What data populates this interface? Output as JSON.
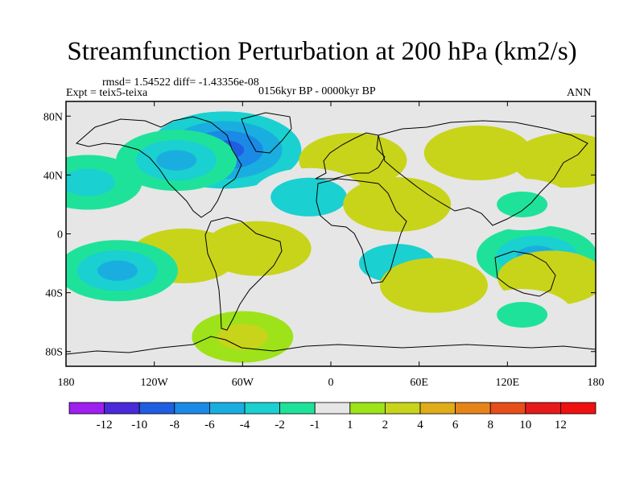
{
  "title": "Streamfunction Perturbation at 200 hPa (km2/s)",
  "stats": "rmsd= 1.54522 diff= -1.43356e-08",
  "experiment": "Expt = teix5-teixa",
  "period": "0156kyr BP - 0000kyr BP",
  "season": "ANN",
  "map": {
    "projection": "cylindrical equidistant",
    "lon_range": [
      -180,
      180
    ],
    "lat_range": [
      -90,
      90
    ],
    "lat_ticks": [
      {
        "label": "80N",
        "lat": 80
      },
      {
        "label": "40N",
        "lat": 40
      },
      {
        "label": "0",
        "lat": 0
      },
      {
        "label": "40S",
        "lat": -40
      },
      {
        "label": "80S",
        "lat": -80
      }
    ],
    "lon_ticks": [
      {
        "label": "180",
        "lon": -180
      },
      {
        "label": "120W",
        "lon": -120
      },
      {
        "label": "60W",
        "lon": -60
      },
      {
        "label": "0",
        "lon": 0
      },
      {
        "label": "60E",
        "lon": 60
      },
      {
        "label": "120E",
        "lon": 120
      },
      {
        "label": "180",
        "lon": 180
      }
    ],
    "background_color": "#e6e6e6",
    "features": [
      {
        "name": "north-atlantic-negative-center",
        "lon": -72,
        "lat": 57,
        "value": -10
      },
      {
        "name": "north-america-negative",
        "lon": -105,
        "lat": 50,
        "value": -5
      },
      {
        "name": "europe-positive",
        "lon": 15,
        "lat": 50,
        "value": 3
      },
      {
        "name": "asia-positive",
        "lon": 100,
        "lat": 55,
        "value": 3
      },
      {
        "name": "north-pacific-positive",
        "lon": 160,
        "lat": 50,
        "value": 3
      },
      {
        "name": "north-pacific-west-negative",
        "lon": -165,
        "lat": 35,
        "value": -3
      },
      {
        "name": "subtropical-north-atlantic-negative",
        "lon": -15,
        "lat": 25,
        "value": -4
      },
      {
        "name": "arabia-positive",
        "lon": 45,
        "lat": 20,
        "value": 3
      },
      {
        "name": "south-pacific-positive",
        "lon": -100,
        "lat": -15,
        "value": 3
      },
      {
        "name": "south-america-positive",
        "lon": -50,
        "lat": -10,
        "value": 3
      },
      {
        "name": "south-pacific-negative",
        "lon": -145,
        "lat": -25,
        "value": -5
      },
      {
        "name": "southern-africa-negative",
        "lon": 45,
        "lat": -20,
        "value": -4
      },
      {
        "name": "south-indian-positive",
        "lon": 70,
        "lat": -35,
        "value": 3
      },
      {
        "name": "maritime-continent-negative",
        "lon": 140,
        "lat": -15,
        "value": -5
      },
      {
        "name": "southeast-australia-positive",
        "lon": 150,
        "lat": -30,
        "value": 3
      },
      {
        "name": "southern-ocean-negative",
        "lon": 130,
        "lat": -55,
        "value": -2
      },
      {
        "name": "antarctic-peninsula-positive",
        "lon": -60,
        "lat": -70,
        "value": 2
      },
      {
        "name": "central-asia-negative",
        "lon": 130,
        "lat": 20,
        "value": -2
      }
    ]
  },
  "colorbar": {
    "labels": [
      "-12",
      "-10",
      "-8",
      "-6",
      "-4",
      "-2",
      "-1",
      "1",
      "2",
      "4",
      "6",
      "8",
      "10",
      "12"
    ],
    "colors": [
      "#9f1ff0",
      "#4a2ad8",
      "#1f5ee0",
      "#1a8ae6",
      "#1aaee0",
      "#1ad0d0",
      "#1fe29a",
      "#e6e6e6",
      "#9ee21a",
      "#c8d41a",
      "#e0ac1a",
      "#e6841a",
      "#e64e1a",
      "#e61a1a",
      "#f01010"
    ]
  }
}
